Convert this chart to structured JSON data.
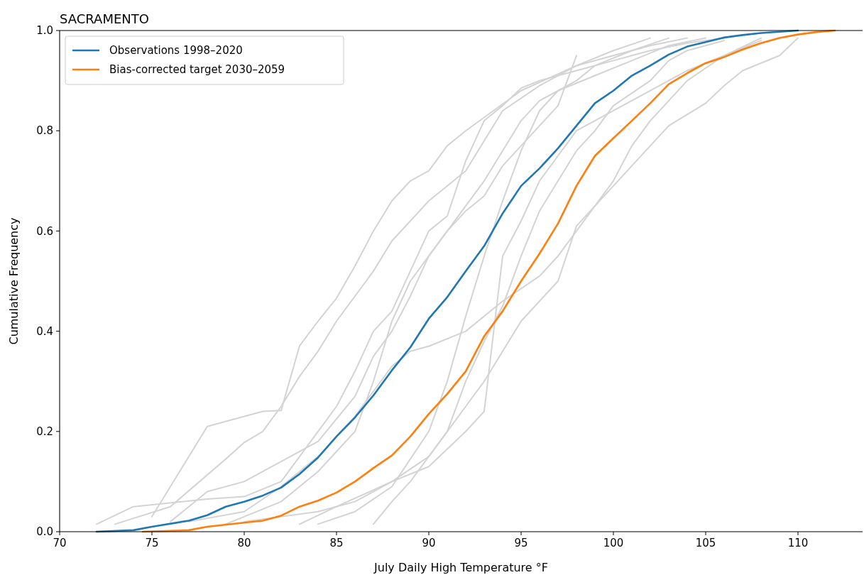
{
  "chart_data": {
    "type": "line",
    "title": "SACRAMENTO",
    "xlabel": "July Daily High Temperature °F",
    "ylabel": "Cumulative Frequency",
    "xlim": [
      70,
      113.5
    ],
    "xticks": [
      70,
      75,
      80,
      85,
      90,
      95,
      100,
      105,
      110
    ],
    "ylim": [
      0,
      1
    ],
    "yticks": [
      {
        "value": 0,
        "label": "0.0"
      },
      {
        "value": 0.2,
        "label": "0.2"
      },
      {
        "value": 0.4,
        "label": "0.4"
      },
      {
        "value": 0.6,
        "label": "0.6"
      },
      {
        "value": 0.8,
        "label": "0.8"
      },
      {
        "value": 1,
        "label": "1.0"
      }
    ],
    "grid": false,
    "legend": "top left",
    "line_style": "solid",
    "series": [
      {
        "color": "#d3d3d3",
        "x": [
          75,
          78,
          81,
          82,
          83,
          84,
          85,
          86,
          87,
          88,
          89,
          90,
          91,
          92,
          95,
          98,
          100,
          102,
          104
        ],
        "values": [
          0.03,
          0.21,
          0.24,
          0.242,
          0.371,
          0.42,
          0.466,
          0.53,
          0.6,
          0.66,
          0.7,
          0.72,
          0.77,
          0.8,
          0.88,
          0.93,
          0.95,
          0.97,
          0.985
        ]
      },
      {
        "color": "#d3d3d3",
        "x": [
          73,
          76,
          79,
          80,
          81,
          82,
          83,
          84,
          85,
          86,
          87,
          88,
          89,
          90,
          92,
          94,
          96,
          98,
          100,
          102
        ],
        "values": [
          0.015,
          0.05,
          0.145,
          0.178,
          0.2,
          0.25,
          0.31,
          0.36,
          0.42,
          0.47,
          0.52,
          0.58,
          0.62,
          0.66,
          0.72,
          0.84,
          0.89,
          0.93,
          0.96,
          0.985
        ]
      },
      {
        "color": "#d3d3d3",
        "x": [
          72,
          74,
          78,
          80,
          82,
          83,
          84,
          85,
          86,
          87,
          88,
          89,
          90,
          91,
          92,
          93,
          94,
          95,
          96,
          98,
          100,
          102,
          104,
          106
        ],
        "values": [
          0.015,
          0.05,
          0.065,
          0.07,
          0.1,
          0.15,
          0.2,
          0.25,
          0.32,
          0.4,
          0.44,
          0.52,
          0.6,
          0.63,
          0.74,
          0.82,
          0.85,
          0.885,
          0.9,
          0.92,
          0.94,
          0.96,
          0.975,
          0.985
        ]
      },
      {
        "color": "#d3d3d3",
        "x": [
          87,
          88,
          89,
          90,
          91,
          92,
          93,
          95,
          96,
          97,
          98,
          99,
          100,
          101,
          102,
          103,
          105,
          106,
          107,
          109,
          110
        ],
        "values": [
          0.015,
          0.06,
          0.1,
          0.15,
          0.2,
          0.25,
          0.3,
          0.42,
          0.46,
          0.5,
          0.61,
          0.65,
          0.69,
          0.73,
          0.77,
          0.81,
          0.855,
          0.89,
          0.92,
          0.95,
          0.985
        ]
      },
      {
        "color": "#d3d3d3",
        "x": [
          83,
          85,
          88,
          90,
          92,
          93,
          94,
          95,
          96,
          97,
          98,
          100,
          102,
          104,
          106,
          108
        ],
        "values": [
          0.015,
          0.05,
          0.1,
          0.13,
          0.2,
          0.24,
          0.55,
          0.62,
          0.7,
          0.75,
          0.8,
          0.84,
          0.88,
          0.92,
          0.95,
          0.98
        ]
      },
      {
        "color": "#d3d3d3",
        "x": [
          77,
          80,
          82,
          84,
          86,
          88,
          89,
          90,
          92,
          94,
          96,
          97,
          98,
          100,
          101,
          102,
          104,
          106,
          108
        ],
        "values": [
          0.02,
          0.04,
          0.09,
          0.15,
          0.23,
          0.33,
          0.36,
          0.37,
          0.4,
          0.46,
          0.51,
          0.55,
          0.6,
          0.7,
          0.77,
          0.82,
          0.9,
          0.95,
          0.985
        ]
      },
      {
        "color": "#d3d3d3",
        "x": [
          79,
          82,
          84,
          86,
          87,
          88,
          89,
          90,
          91,
          92,
          93,
          94,
          95,
          96,
          98,
          99,
          101,
          103
        ],
        "values": [
          0.015,
          0.06,
          0.12,
          0.2,
          0.3,
          0.42,
          0.5,
          0.55,
          0.6,
          0.65,
          0.7,
          0.76,
          0.82,
          0.86,
          0.9,
          0.93,
          0.96,
          0.985
        ]
      },
      {
        "color": "#d3d3d3",
        "x": [
          76,
          78,
          80,
          82,
          84,
          86,
          87,
          88,
          89,
          90,
          91,
          92,
          93,
          94,
          95,
          96,
          97,
          98
        ],
        "values": [
          0.02,
          0.08,
          0.1,
          0.14,
          0.18,
          0.27,
          0.35,
          0.4,
          0.47,
          0.55,
          0.6,
          0.64,
          0.67,
          0.73,
          0.77,
          0.81,
          0.85,
          0.95
        ]
      },
      {
        "color": "#d3d3d3",
        "x": [
          80,
          84,
          86,
          88,
          90,
          91,
          92,
          93,
          94,
          95,
          96,
          97,
          98,
          99,
          100,
          102,
          103,
          104,
          106
        ],
        "values": [
          0.02,
          0.04,
          0.06,
          0.1,
          0.15,
          0.2,
          0.3,
          0.38,
          0.45,
          0.55,
          0.64,
          0.7,
          0.76,
          0.8,
          0.85,
          0.9,
          0.94,
          0.96,
          0.98
        ]
      },
      {
        "color": "#d3d3d3",
        "x": [
          84,
          86,
          88,
          90,
          91,
          92,
          93,
          94,
          95,
          96,
          97,
          99,
          101,
          103,
          105
        ],
        "values": [
          0.015,
          0.04,
          0.09,
          0.2,
          0.3,
          0.43,
          0.55,
          0.66,
          0.76,
          0.84,
          0.88,
          0.91,
          0.94,
          0.97,
          0.985
        ]
      },
      {
        "name": "Observations 1998–2020",
        "color": "#1f77b4",
        "x": [
          72,
          74,
          75,
          77,
          78,
          79,
          80,
          81,
          82,
          83,
          84,
          85,
          86,
          87,
          88,
          89,
          90,
          91,
          92,
          93,
          94,
          95,
          96,
          97,
          98,
          99,
          100,
          101,
          102,
          103,
          104,
          105,
          106,
          107,
          108,
          110
        ],
        "values": [
          0,
          0.003,
          0.01,
          0.022,
          0.033,
          0.05,
          0.06,
          0.072,
          0.088,
          0.115,
          0.148,
          0.19,
          0.228,
          0.272,
          0.322,
          0.368,
          0.425,
          0.468,
          0.52,
          0.57,
          0.635,
          0.69,
          0.725,
          0.765,
          0.81,
          0.855,
          0.88,
          0.91,
          0.93,
          0.952,
          0.968,
          0.977,
          0.986,
          0.991,
          0.995,
          1
        ]
      },
      {
        "name": "Bias-corrected target 2030–2059",
        "color": "#ff7f0e",
        "x": [
          74.5,
          77,
          78,
          80,
          81,
          82,
          83,
          84,
          85,
          86,
          87,
          88,
          89,
          90,
          91,
          92,
          93,
          94,
          95,
          96,
          97,
          98,
          99,
          100,
          101,
          102,
          103,
          104,
          105,
          106,
          107,
          108,
          109,
          110,
          111,
          112
        ],
        "values": [
          0,
          0.003,
          0.01,
          0.018,
          0.022,
          0.032,
          0.05,
          0.062,
          0.078,
          0.1,
          0.127,
          0.152,
          0.19,
          0.235,
          0.275,
          0.32,
          0.39,
          0.44,
          0.5,
          0.555,
          0.615,
          0.69,
          0.75,
          0.785,
          0.82,
          0.855,
          0.893,
          0.915,
          0.935,
          0.947,
          0.962,
          0.975,
          0.985,
          0.992,
          0.997,
          1
        ]
      }
    ]
  }
}
